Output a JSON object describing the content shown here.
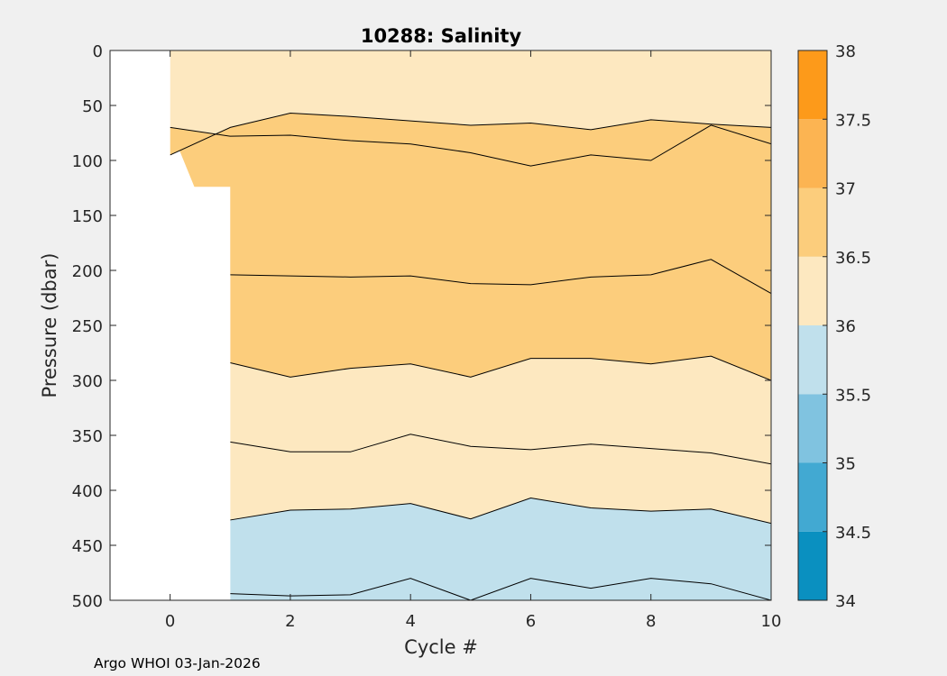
{
  "chart_data": {
    "type": "contour",
    "title": "10288:  Salinity",
    "xlabel": "Cycle #",
    "ylabel": "Pressure (dbar)",
    "xlim": [
      -1,
      10
    ],
    "ylim": [
      0,
      500
    ],
    "y_reversed": true,
    "x_ticks": [
      "0",
      "2",
      "4",
      "6",
      "8",
      "10"
    ],
    "x_tick_values": [
      0,
      2,
      4,
      6,
      8,
      10
    ],
    "y_ticks": [
      "0",
      "50",
      "100",
      "150",
      "200",
      "250",
      "300",
      "350",
      "400",
      "450",
      "500"
    ],
    "y_tick_values": [
      0,
      50,
      100,
      150,
      200,
      250,
      300,
      350,
      400,
      450,
      500
    ],
    "colorbar": {
      "labels": [
        "34",
        "34.5",
        "35",
        "35.5",
        "36",
        "36.5",
        "37",
        "37.5",
        "38"
      ],
      "levels": [
        34,
        34.5,
        35,
        35.5,
        36,
        36.5,
        37,
        37.5,
        38
      ],
      "colors": [
        "#0a90c0",
        "#42a9d2",
        "#80c3e0",
        "#c0e0ec",
        "#fde8c0",
        "#fccd7c",
        "#fcb452",
        "#fd9a1a"
      ]
    },
    "no_data_region": {
      "x_range": [
        -1,
        1
      ],
      "cycle0_max_pressure": 124
    },
    "cycles": [
      0,
      1,
      2,
      3,
      4,
      5,
      6,
      7,
      8,
      9,
      10
    ],
    "contours": [
      {
        "level": 36.0,
        "band_above_color": "#fde8c0",
        "pressure": [
          null,
          427,
          418,
          417,
          412,
          426,
          407,
          416,
          419,
          417,
          430
        ]
      },
      {
        "level": 36.0,
        "band_above_color": "#c0e0ec",
        "pressure": [
          null,
          494,
          496,
          495,
          480,
          500,
          480,
          489,
          480,
          485,
          500
        ]
      },
      {
        "level": 36.5,
        "band_above_color": "#fccd7c",
        "pressure": [
          95,
          70,
          57,
          60,
          64,
          68,
          66,
          72,
          63,
          67,
          70
        ]
      },
      {
        "level": 36.5,
        "band_above_color": "#fde8c0",
        "pressure": [
          null,
          284,
          297,
          289,
          285,
          297,
          280,
          280,
          285,
          278,
          300
        ]
      },
      {
        "level": 36.5,
        "band_above_color": "#fde8c0",
        "pressure": [
          null,
          356,
          365,
          365,
          349,
          360,
          363,
          358,
          362,
          366,
          376
        ]
      },
      {
        "level": 36.5,
        "band_above_color": "#fccd7c",
        "pressure": [
          null,
          204,
          205,
          206,
          205,
          212,
          213,
          206,
          204,
          190,
          221
        ]
      },
      {
        "level": 36.5,
        "band_above_color": "#fccd7c",
        "pressure": [
          70,
          78,
          77,
          82,
          85,
          93,
          105,
          95,
          100,
          68,
          85
        ]
      }
    ]
  }
}
